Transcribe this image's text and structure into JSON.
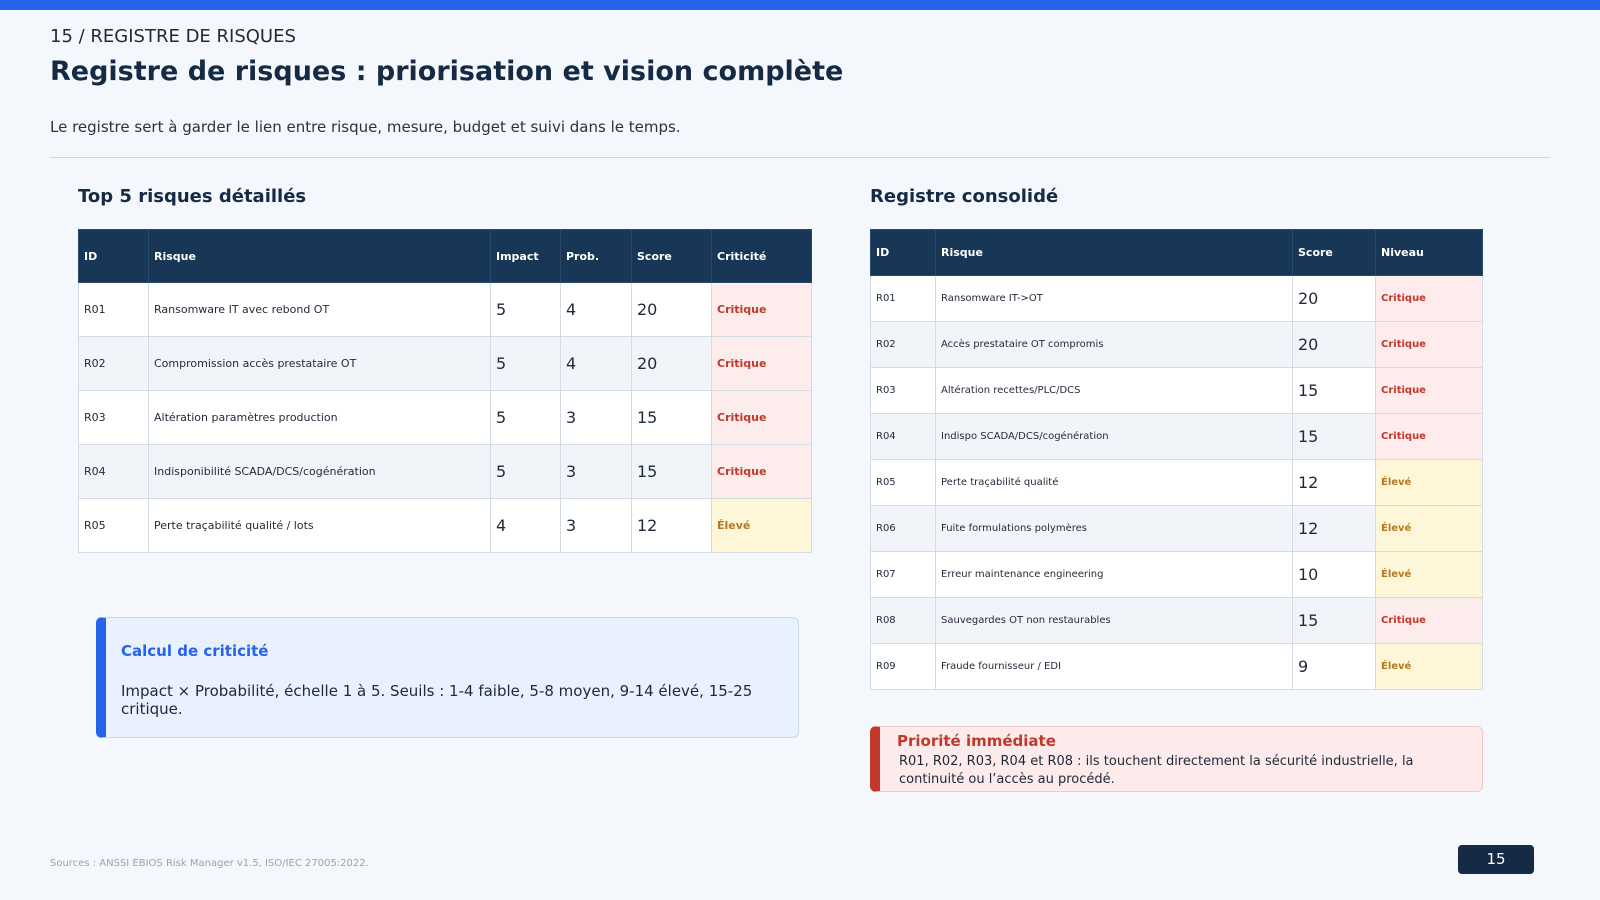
{
  "header": {
    "kicker": "15 / REGISTRE DE RISQUES",
    "title": "Registre de risques : priorisation et vision complète",
    "subtitle": "Le registre sert à garder le lien entre risque, mesure, budget et suivi dans le temps."
  },
  "level_colors": {
    "Critique": {
      "bg": "#fdecec",
      "fg": "#c0392b"
    },
    "Élevé": {
      "bg": "#fdf6d8",
      "fg": "#b7791f"
    }
  },
  "top5": {
    "title": "Top 5 risques détaillés",
    "table": {
      "headers": [
        "ID",
        "Risque",
        "Impact",
        "Prob.",
        "Score",
        "Criticité"
      ],
      "rows": [
        [
          "R01",
          "Ransomware IT avec rebond OT",
          5,
          4,
          20,
          "Critique"
        ],
        [
          "R02",
          "Compromission accès prestataire OT",
          5,
          4,
          20,
          "Critique"
        ],
        [
          "R03",
          "Altération paramètres production",
          5,
          3,
          15,
          "Critique"
        ],
        [
          "R04",
          "Indisponibilité SCADA/DCS/cogénération",
          5,
          3,
          15,
          "Critique"
        ],
        [
          "R05",
          "Perte traçabilité qualité / lots",
          4,
          3,
          12,
          "Élevé"
        ]
      ]
    }
  },
  "callout": {
    "title": "Calcul de criticité",
    "text": "Impact × Probabilité, échelle 1 à 5. Seuils : 1-4 faible, 5-8 moyen, 9-14 élevé, 15-25 critique."
  },
  "registry": {
    "title": "Registre consolidé",
    "table": {
      "headers": [
        "ID",
        "Risque",
        "Score",
        "Niveau"
      ],
      "rows": [
        [
          "R01",
          "Ransomware IT->OT",
          20,
          "Critique"
        ],
        [
          "R02",
          "Accès prestataire OT compromis",
          20,
          "Critique"
        ],
        [
          "R03",
          "Altération recettes/PLC/DCS",
          15,
          "Critique"
        ],
        [
          "R04",
          "Indispo SCADA/DCS/cogénération",
          15,
          "Critique"
        ],
        [
          "R05",
          "Perte traçabilité qualité",
          12,
          "Élevé"
        ],
        [
          "R06",
          "Fuite formulations polymères",
          12,
          "Élevé"
        ],
        [
          "R07",
          "Erreur maintenance engineering",
          10,
          "Élevé"
        ],
        [
          "R08",
          "Sauvegardes OT non restaurables",
          15,
          "Critique"
        ],
        [
          "R09",
          "Fraude fournisseur / EDI",
          9,
          "Élevé"
        ]
      ]
    }
  },
  "priority": {
    "title": "Priorité immédiate",
    "text": "R01, R02, R03, R04 et R08 : ils touchent directement la sécurité industrielle, la continuité ou l’accès au procédé."
  },
  "footer": {
    "sources": "Sources : ANSSI EBIOS Risk Manager v1.5, ISO/IEC 27005:2022.",
    "page": 15
  }
}
